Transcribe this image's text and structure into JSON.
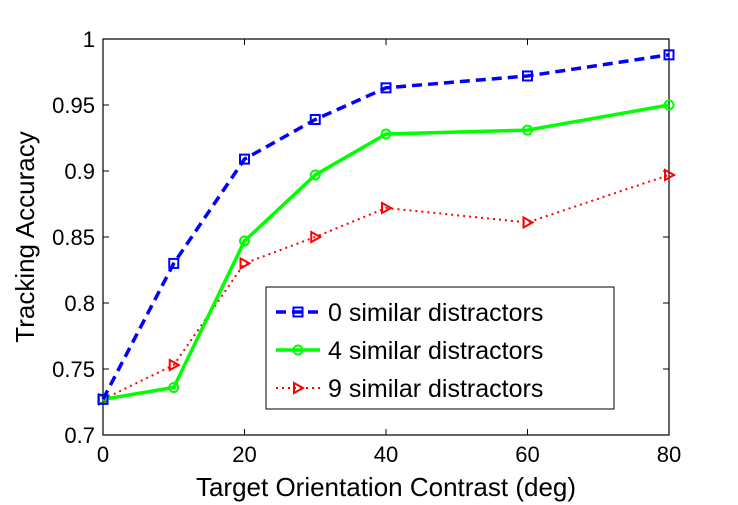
{
  "chart_data": {
    "type": "line",
    "title": "",
    "xlabel": "Target Orientation Contrast (deg)",
    "ylabel": "Tracking Accuracy",
    "x": [
      0,
      10,
      20,
      30,
      40,
      60,
      80
    ],
    "xlim": [
      0,
      80
    ],
    "ylim": [
      0.7,
      1.0
    ],
    "xticks": [
      "0",
      "20",
      "40",
      "60",
      "80"
    ],
    "yticks": [
      "0.7",
      "0.75",
      "0.8",
      "0.85",
      "0.9",
      "0.95",
      "1"
    ],
    "grid": false,
    "legend_position": "bottom-right",
    "series": [
      {
        "name": "0 similar distractors",
        "color": "#0000ff",
        "style": "dashed",
        "marker": "square",
        "values": [
          0.727,
          0.83,
          0.909,
          0.939,
          0.963,
          0.972,
          0.988
        ]
      },
      {
        "name": "4 similar distractors",
        "color": "#00ff00",
        "style": "solid",
        "marker": "circle",
        "values": [
          0.727,
          0.736,
          0.847,
          0.897,
          0.928,
          0.931,
          0.95
        ]
      },
      {
        "name": "9 similar distractors",
        "color": "#ff0000",
        "style": "dotted",
        "marker": "triangle-right",
        "values": [
          0.727,
          0.753,
          0.83,
          0.85,
          0.872,
          0.861,
          0.897
        ]
      }
    ]
  }
}
